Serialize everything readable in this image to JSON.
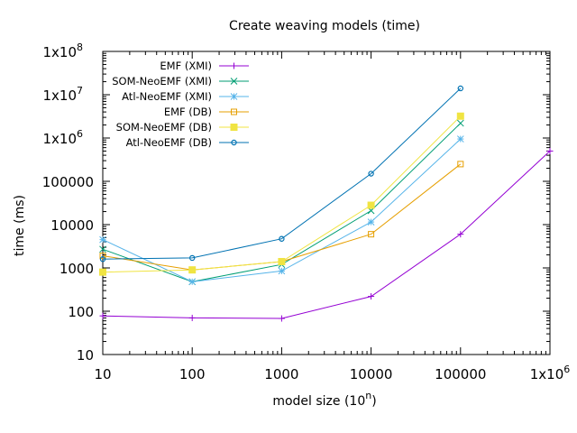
{
  "chart_data": {
    "type": "line",
    "title": "Create weaving models (time)",
    "xlabel": "model size (10",
    "xlabel_sup": "n",
    "xlabel_close": ")",
    "ylabel": "time (ms)",
    "xscale": "log",
    "yscale": "log",
    "xlim": [
      10,
      1000000
    ],
    "ylim": [
      10,
      100000000
    ],
    "x_ticks": [
      {
        "value": 10,
        "label": "10",
        "sup": ""
      },
      {
        "value": 100,
        "label": "100",
        "sup": ""
      },
      {
        "value": 1000,
        "label": "1000",
        "sup": ""
      },
      {
        "value": 10000,
        "label": "10000",
        "sup": ""
      },
      {
        "value": 100000,
        "label": "100000",
        "sup": ""
      },
      {
        "value": 1000000,
        "label": "1x10",
        "sup": "6"
      }
    ],
    "y_ticks": [
      {
        "value": 10,
        "label": "10",
        "sup": ""
      },
      {
        "value": 100,
        "label": "100",
        "sup": ""
      },
      {
        "value": 1000,
        "label": "1000",
        "sup": ""
      },
      {
        "value": 10000,
        "label": "10000",
        "sup": ""
      },
      {
        "value": 100000,
        "label": "100000",
        "sup": ""
      },
      {
        "value": 1000000,
        "label": "1x10",
        "sup": "6"
      },
      {
        "value": 10000000,
        "label": "1x10",
        "sup": "7"
      },
      {
        "value": 100000000,
        "label": "1x10",
        "sup": "8"
      }
    ],
    "legend_position": "top-left",
    "grid": false,
    "series": [
      {
        "name": "EMF (XMI)",
        "color": "#9400d3",
        "marker": "plus",
        "x": [
          10,
          100,
          1000,
          10000,
          100000,
          1000000
        ],
        "y": [
          78,
          70,
          68,
          220,
          6000,
          500000
        ]
      },
      {
        "name": "SOM-NeoEMF (XMI)",
        "color": "#009e73",
        "marker": "cross",
        "x": [
          10,
          100,
          1000,
          10000,
          100000
        ],
        "y": [
          2700,
          480,
          1200,
          21000,
          2200000
        ]
      },
      {
        "name": "Atl-NeoEMF (XMI)",
        "color": "#56b4e9",
        "marker": "star",
        "x": [
          10,
          100,
          1000,
          10000,
          100000
        ],
        "y": [
          4500,
          480,
          850,
          11500,
          950000
        ]
      },
      {
        "name": "EMF (DB)",
        "color": "#e69f00",
        "marker": "box",
        "x": [
          10,
          100,
          1000,
          10000,
          100000
        ],
        "y": [
          1900,
          900,
          1400,
          6000,
          250000
        ]
      },
      {
        "name": "SOM-NeoEMF (DB)",
        "color": "#f0e442",
        "marker": "filled-box",
        "x": [
          10,
          100,
          1000,
          10000,
          100000
        ],
        "y": [
          800,
          900,
          1400,
          28000,
          3200000
        ]
      },
      {
        "name": "Atl-NeoEMF (DB)",
        "color": "#0072b2",
        "marker": "circle",
        "x": [
          10,
          100,
          1000,
          10000,
          100000
        ],
        "y": [
          1600,
          1700,
          4700,
          150000,
          14000000
        ]
      }
    ]
  }
}
